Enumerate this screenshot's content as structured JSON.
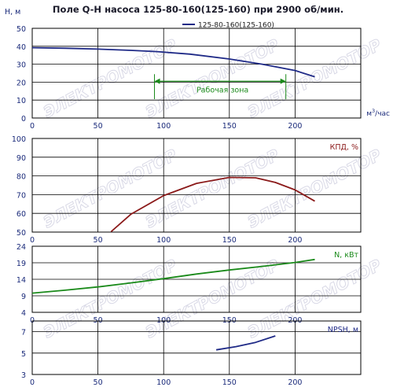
{
  "title": "Поле Q-H насоса 125-80-160(125-160) при 2900 об/мин.",
  "x_axis": {
    "unit_base": "м",
    "unit_sup": "3",
    "unit_suffix": "/час",
    "ticks": [
      0,
      50,
      100,
      150,
      200
    ],
    "range": [
      0,
      250
    ]
  },
  "chart_data": [
    {
      "type": "line",
      "ylabel": "Н, м",
      "ylim": [
        0,
        50
      ],
      "yticks": [
        0,
        10,
        20,
        30,
        40,
        50
      ],
      "grid": true,
      "legend": {
        "position": "top-right",
        "entries": [
          "125-80-160(125-160)"
        ]
      },
      "series": [
        {
          "name": "125-80-160(125-160)",
          "color": "#1f2a87",
          "x": [
            0,
            25,
            50,
            75,
            95,
            120,
            150,
            175,
            200,
            215
          ],
          "y": [
            39.2,
            38.9,
            38.4,
            37.7,
            37.0,
            35.6,
            32.9,
            30.0,
            26.5,
            23.0
          ]
        }
      ],
      "annotation": {
        "text": "Рабочая зона",
        "x_start": 93,
        "x_end": 193,
        "y_arrow": 20.5,
        "color": "#1a8a1a"
      }
    },
    {
      "type": "line",
      "ylabel": "КПД, %",
      "ylim": [
        50,
        100
      ],
      "yticks": [
        50,
        60,
        70,
        80,
        90,
        100
      ],
      "grid": true,
      "series": [
        {
          "color": "#8b1a1a",
          "x": [
            60,
            75,
            100,
            125,
            150,
            170,
            185,
            200,
            215
          ],
          "y": [
            50.2,
            59.5,
            69.5,
            76.0,
            79.2,
            79.0,
            76.5,
            72.5,
            66.5
          ]
        }
      ]
    },
    {
      "type": "line",
      "ylabel": "N, кВт",
      "ylim": [
        4,
        24
      ],
      "yticks": [
        4,
        9,
        14,
        19,
        24
      ],
      "grid": true,
      "series": [
        {
          "color": "#1a8a1a",
          "x": [
            0,
            25,
            50,
            75,
            100,
            125,
            150,
            175,
            200,
            215
          ],
          "y": [
            9.8,
            10.7,
            11.7,
            12.9,
            14.2,
            15.6,
            16.8,
            17.9,
            19.1,
            20.0
          ]
        }
      ]
    },
    {
      "type": "line",
      "ylabel": "NPSH, м",
      "ylim": [
        3,
        8
      ],
      "yticks": [
        3,
        5,
        7
      ],
      "grid": true,
      "series": [
        {
          "color": "#1f2a87",
          "x": [
            140,
            155,
            170,
            185
          ],
          "y": [
            5.3,
            5.6,
            6.0,
            6.6
          ]
        }
      ]
    }
  ],
  "colors": {
    "tick_label": "#1a2a7a",
    "grid": "#000000",
    "title": "#1a1a2a",
    "watermark": "#d9d9e6"
  },
  "watermark": "ЭЛЕКТРОМОТОР"
}
